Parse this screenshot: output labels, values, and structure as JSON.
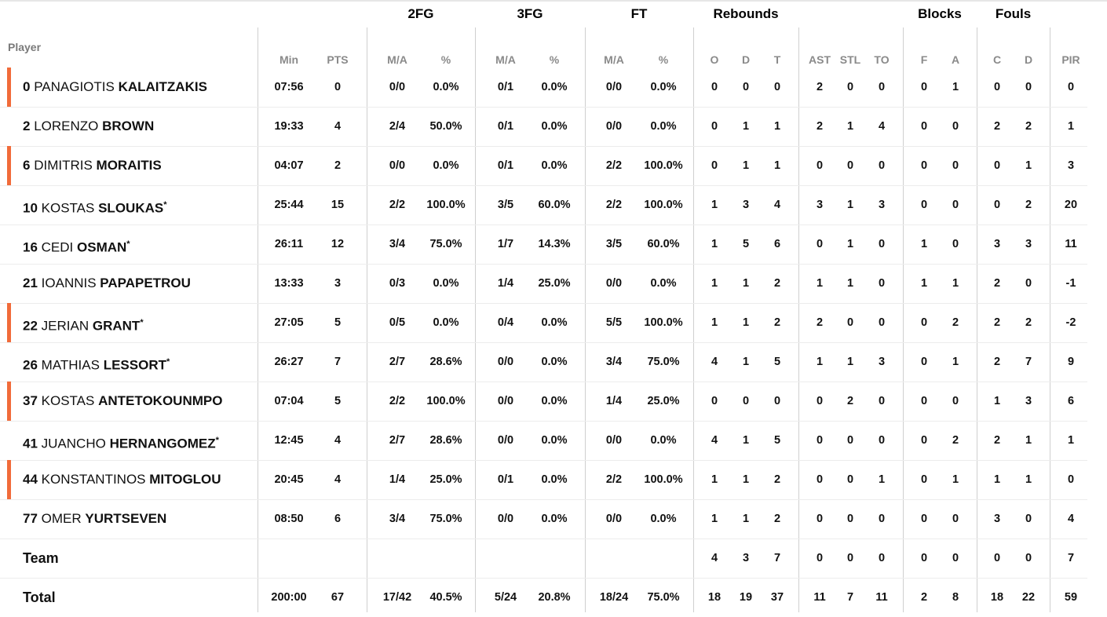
{
  "groups": [
    "2FG",
    "3FG",
    "FT",
    "Rebounds",
    "Blocks",
    "Fouls"
  ],
  "player_header": "Player",
  "columns": [
    "Min",
    "PTS",
    "M/A",
    "%",
    "M/A",
    "%",
    "M/A",
    "%",
    "O",
    "D",
    "T",
    "AST",
    "STL",
    "TO",
    "F",
    "A",
    "C",
    "D",
    "PIR"
  ],
  "players": [
    {
      "num": "0",
      "first": "PANAGIOTIS",
      "last": "KALAITZAKIS",
      "starter": false,
      "bar": true,
      "stats": [
        "07:56",
        "0",
        "0/0",
        "0.0%",
        "0/1",
        "0.0%",
        "0/0",
        "0.0%",
        "0",
        "0",
        "0",
        "2",
        "0",
        "0",
        "0",
        "1",
        "0",
        "0",
        "0"
      ]
    },
    {
      "num": "2",
      "first": "LORENZO",
      "last": "BROWN",
      "starter": false,
      "bar": false,
      "stats": [
        "19:33",
        "4",
        "2/4",
        "50.0%",
        "0/1",
        "0.0%",
        "0/0",
        "0.0%",
        "0",
        "1",
        "1",
        "2",
        "1",
        "4",
        "0",
        "0",
        "2",
        "2",
        "1"
      ]
    },
    {
      "num": "6",
      "first": "DIMITRIS",
      "last": "MORAITIS",
      "starter": false,
      "bar": true,
      "stats": [
        "04:07",
        "2",
        "0/0",
        "0.0%",
        "0/1",
        "0.0%",
        "2/2",
        "100.0%",
        "0",
        "1",
        "1",
        "0",
        "0",
        "0",
        "0",
        "0",
        "0",
        "1",
        "3"
      ]
    },
    {
      "num": "10",
      "first": "KOSTAS",
      "last": "SLOUKAS",
      "starter": true,
      "bar": false,
      "stats": [
        "25:44",
        "15",
        "2/2",
        "100.0%",
        "3/5",
        "60.0%",
        "2/2",
        "100.0%",
        "1",
        "3",
        "4",
        "3",
        "1",
        "3",
        "0",
        "0",
        "0",
        "2",
        "20"
      ]
    },
    {
      "num": "16",
      "first": "CEDI",
      "last": "OSMAN",
      "starter": true,
      "bar": false,
      "stats": [
        "26:11",
        "12",
        "3/4",
        "75.0%",
        "1/7",
        "14.3%",
        "3/5",
        "60.0%",
        "1",
        "5",
        "6",
        "0",
        "1",
        "0",
        "1",
        "0",
        "3",
        "3",
        "11"
      ]
    },
    {
      "num": "21",
      "first": "IOANNIS",
      "last": "PAPAPETROU",
      "starter": false,
      "bar": false,
      "stats": [
        "13:33",
        "3",
        "0/3",
        "0.0%",
        "1/4",
        "25.0%",
        "0/0",
        "0.0%",
        "1",
        "1",
        "2",
        "1",
        "1",
        "0",
        "1",
        "1",
        "2",
        "0",
        "-1"
      ]
    },
    {
      "num": "22",
      "first": "JERIAN",
      "last": "GRANT",
      "starter": true,
      "bar": true,
      "stats": [
        "27:05",
        "5",
        "0/5",
        "0.0%",
        "0/4",
        "0.0%",
        "5/5",
        "100.0%",
        "1",
        "1",
        "2",
        "2",
        "0",
        "0",
        "0",
        "2",
        "2",
        "2",
        "-2"
      ]
    },
    {
      "num": "26",
      "first": "MATHIAS",
      "last": "LESSORT",
      "starter": true,
      "bar": false,
      "stats": [
        "26:27",
        "7",
        "2/7",
        "28.6%",
        "0/0",
        "0.0%",
        "3/4",
        "75.0%",
        "4",
        "1",
        "5",
        "1",
        "1",
        "3",
        "0",
        "1",
        "2",
        "7",
        "9"
      ]
    },
    {
      "num": "37",
      "first": "KOSTAS",
      "last": "ANTETOKOUNMPO",
      "starter": false,
      "bar": true,
      "stats": [
        "07:04",
        "5",
        "2/2",
        "100.0%",
        "0/0",
        "0.0%",
        "1/4",
        "25.0%",
        "0",
        "0",
        "0",
        "0",
        "2",
        "0",
        "0",
        "0",
        "1",
        "3",
        "6"
      ]
    },
    {
      "num": "41",
      "first": "JUANCHO",
      "last": "HERNANGOMEZ",
      "starter": true,
      "bar": false,
      "stats": [
        "12:45",
        "4",
        "2/7",
        "28.6%",
        "0/0",
        "0.0%",
        "0/0",
        "0.0%",
        "4",
        "1",
        "5",
        "0",
        "0",
        "0",
        "0",
        "2",
        "2",
        "1",
        "1"
      ]
    },
    {
      "num": "44",
      "first": "KONSTANTINOS",
      "last": "MITOGLOU",
      "starter": false,
      "bar": true,
      "stats": [
        "20:45",
        "4",
        "1/4",
        "25.0%",
        "0/1",
        "0.0%",
        "2/2",
        "100.0%",
        "1",
        "1",
        "2",
        "0",
        "0",
        "1",
        "0",
        "1",
        "1",
        "1",
        "0"
      ]
    },
    {
      "num": "77",
      "first": "OMER",
      "last": "YURTSEVEN",
      "starter": false,
      "bar": false,
      "stats": [
        "08:50",
        "6",
        "3/4",
        "75.0%",
        "0/0",
        "0.0%",
        "0/0",
        "0.0%",
        "1",
        "1",
        "2",
        "0",
        "0",
        "0",
        "0",
        "0",
        "3",
        "0",
        "4"
      ]
    }
  ],
  "team": {
    "label": "Team",
    "stats": [
      "",
      "",
      "",
      "",
      "",
      "",
      "",
      "",
      "4",
      "3",
      "7",
      "0",
      "0",
      "0",
      "0",
      "0",
      "0",
      "0",
      "7"
    ]
  },
  "total": {
    "label": "Total",
    "stats": [
      "200:00",
      "67",
      "17/42",
      "40.5%",
      "5/24",
      "20.8%",
      "18/24",
      "75.0%",
      "18",
      "19",
      "37",
      "11",
      "7",
      "11",
      "2",
      "8",
      "18",
      "22",
      "59"
    ]
  },
  "colors": {
    "bar": "#f16b3a",
    "divider": "#cfcfcf",
    "rowline": "#ececec",
    "header": "#8a8a8a"
  }
}
